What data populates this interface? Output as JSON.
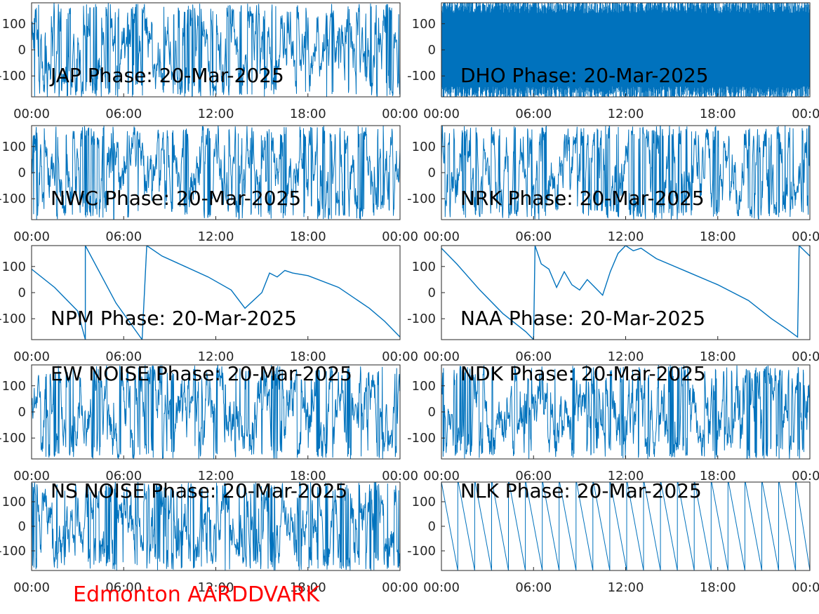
{
  "footer": {
    "text": "Edmonton AARDDVARK",
    "color": "#ff0000"
  },
  "colors": {
    "trace": "#0072bd",
    "axes": "#262626",
    "background": "#ffffff"
  },
  "chart_data": [
    {
      "type": "line",
      "title": "JAP Phase: 20-Mar-2025",
      "style": "noisy-wrapping",
      "x_ticks": [
        "00:00",
        "06:00",
        "12:00",
        "18:00",
        "00:00"
      ],
      "y_ticks": [
        "100",
        "0",
        "-100"
      ],
      "xlim": [
        0,
        24
      ],
      "ylim": [
        -180,
        180
      ]
    },
    {
      "type": "line",
      "title": "DHO Phase: 20-Mar-2025",
      "style": "dense-wrapping",
      "x_ticks": [
        "00:00",
        "06:00",
        "12:00",
        "18:00",
        "00:00"
      ],
      "y_ticks": [
        "100",
        "0",
        "-100"
      ],
      "xlim": [
        0,
        24
      ],
      "ylim": [
        -180,
        180
      ]
    },
    {
      "type": "line",
      "title": "NWC Phase: 20-Mar-2025",
      "style": "noisy-wrapping",
      "x_ticks": [
        "00:00",
        "06:00",
        "12:00",
        "18:00",
        "00:00"
      ],
      "y_ticks": [
        "100",
        "0",
        "-100"
      ],
      "xlim": [
        0,
        24
      ],
      "ylim": [
        -180,
        180
      ]
    },
    {
      "type": "line",
      "title": "NRK Phase: 20-Mar-2025",
      "style": "noisy-wrapping",
      "x_ticks": [
        "00:00",
        "06:00",
        "12:00",
        "18:00",
        "00:00"
      ],
      "y_ticks": [
        "100",
        "0",
        "-100"
      ],
      "xlim": [
        0,
        24
      ],
      "ylim": [
        -180,
        180
      ]
    },
    {
      "type": "line",
      "title": "NPM Phase: 20-Mar-2025",
      "style": "points",
      "x_ticks": [
        "00:00",
        "06:00",
        "12:00",
        "18:00",
        "00:00"
      ],
      "y_ticks": [
        "100",
        "0",
        "-100"
      ],
      "xlim": [
        0,
        24
      ],
      "ylim": [
        -180,
        180
      ],
      "points": [
        [
          0,
          90
        ],
        [
          1.5,
          20
        ],
        [
          3,
          -70
        ],
        [
          3.5,
          -180
        ],
        [
          3.5,
          180
        ],
        [
          5.5,
          -40
        ],
        [
          7.2,
          -180
        ],
        [
          7.5,
          180
        ],
        [
          8.5,
          140
        ],
        [
          10,
          100
        ],
        [
          11.5,
          60
        ],
        [
          13,
          10
        ],
        [
          13.9,
          -60
        ],
        [
          15,
          0
        ],
        [
          15.5,
          75
        ],
        [
          16,
          60
        ],
        [
          16.5,
          85
        ],
        [
          17,
          75
        ],
        [
          18,
          65
        ],
        [
          20,
          20
        ],
        [
          22,
          -60
        ],
        [
          23,
          -110
        ],
        [
          24,
          -170
        ]
      ]
    },
    {
      "type": "line",
      "title": "NAA Phase: 20-Mar-2025",
      "style": "points",
      "x_ticks": [
        "00:00",
        "06:00",
        "12:00",
        "18:00",
        "00:00"
      ],
      "y_ticks": [
        "100",
        "0",
        "-100"
      ],
      "xlim": [
        0,
        24
      ],
      "ylim": [
        -180,
        180
      ],
      "points": [
        [
          0,
          170
        ],
        [
          1,
          110
        ],
        [
          2.5,
          10
        ],
        [
          4,
          -80
        ],
        [
          5.5,
          -150
        ],
        [
          6,
          -180
        ],
        [
          6.1,
          180
        ],
        [
          6.5,
          110
        ],
        [
          7,
          90
        ],
        [
          7.5,
          20
        ],
        [
          8,
          80
        ],
        [
          8.5,
          30
        ],
        [
          9,
          10
        ],
        [
          9.5,
          50
        ],
        [
          10,
          20
        ],
        [
          10.5,
          -10
        ],
        [
          11,
          80
        ],
        [
          11.5,
          150
        ],
        [
          12,
          180
        ],
        [
          12.5,
          160
        ],
        [
          13,
          170
        ],
        [
          13.5,
          150
        ],
        [
          14,
          130
        ],
        [
          16,
          80
        ],
        [
          18,
          30
        ],
        [
          20,
          -30
        ],
        [
          21.5,
          -100
        ],
        [
          22.5,
          -140
        ],
        [
          23.2,
          -170
        ],
        [
          23.3,
          180
        ],
        [
          24,
          140
        ]
      ]
    },
    {
      "type": "line",
      "title": "EW NOISE Phase: 20-Mar-2025",
      "style": "noisy-wrapping",
      "x_ticks": [
        "00:00",
        "06:00",
        "12:00",
        "18:00",
        "00:00"
      ],
      "y_ticks": [
        "100",
        "0",
        "-100"
      ],
      "xlim": [
        0,
        24
      ],
      "ylim": [
        -180,
        180
      ]
    },
    {
      "type": "line",
      "title": "NDK Phase: 20-Mar-2025",
      "style": "noisy-wrapping",
      "x_ticks": [
        "00:00",
        "06:00",
        "12:00",
        "18:00",
        "00:00"
      ],
      "y_ticks": [
        "100",
        "0",
        "-100"
      ],
      "xlim": [
        0,
        24
      ],
      "ylim": [
        -180,
        180
      ]
    },
    {
      "type": "line",
      "title": "NS NOISE Phase: 20-Mar-2025",
      "style": "noisy-wrapping",
      "x_ticks": [
        "00:00",
        "06:00",
        "12:00",
        "18:00",
        "00:00"
      ],
      "y_ticks": [
        "100",
        "0",
        "-100"
      ],
      "xlim": [
        0,
        24
      ],
      "ylim": [
        -180,
        180
      ]
    },
    {
      "type": "line",
      "title": "NLK Phase: 20-Mar-2025",
      "style": "sawtooth",
      "x_ticks": [
        "00:00",
        "06:00",
        "12:00",
        "18:00",
        "00:00"
      ],
      "y_ticks": [
        "100",
        "0",
        "-100"
      ],
      "xlim": [
        0,
        24
      ],
      "ylim": [
        -180,
        180
      ],
      "period_hours": 1.1
    }
  ]
}
